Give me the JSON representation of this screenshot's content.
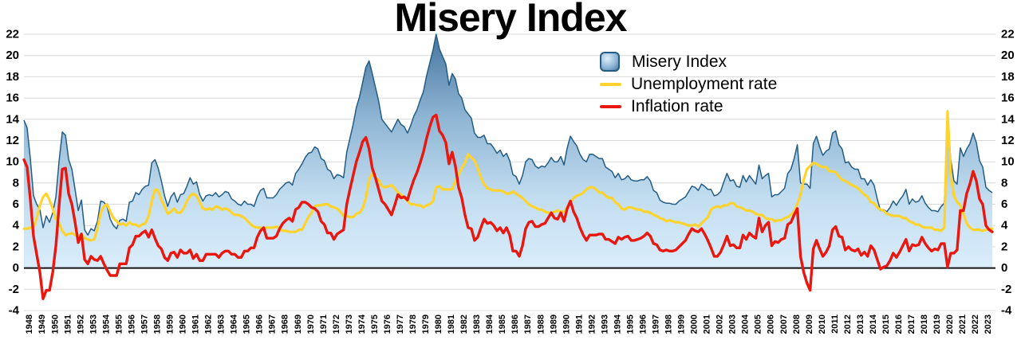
{
  "chart_data": {
    "type": "area",
    "title": "Misery Index",
    "x_range": [
      1948,
      2024
    ],
    "x_step": 0.25,
    "resolution": "quarterly",
    "ylim": [
      -4,
      22
    ],
    "y_ticks": [
      -4,
      -2,
      0,
      2,
      4,
      6,
      8,
      10,
      12,
      14,
      16,
      18,
      20,
      22
    ],
    "y_axis_sides": "both",
    "grid": true,
    "legend_position": "upper-right-inside",
    "x_tick_labels": [
      1948,
      1949,
      1950,
      1951,
      1952,
      1953,
      1954,
      1955,
      1956,
      1957,
      1958,
      1959,
      1960,
      1961,
      1962,
      1963,
      1964,
      1965,
      1966,
      1967,
      1968,
      1969,
      1970,
      1971,
      1972,
      1973,
      1974,
      1975,
      1976,
      1977,
      1978,
      1979,
      1980,
      1981,
      1982,
      1983,
      1984,
      1985,
      1986,
      1987,
      1988,
      1989,
      1990,
      1991,
      1992,
      1993,
      1994,
      1995,
      1996,
      1997,
      1998,
      1999,
      2000,
      2001,
      2002,
      2003,
      2004,
      2005,
      2006,
      2007,
      2008,
      2009,
      2010,
      2011,
      2012,
      2013,
      2014,
      2015,
      2016,
      2017,
      2018,
      2019,
      2020,
      2021,
      2022,
      2023
    ],
    "colors": {
      "background": "#ffffff",
      "grid": "#d8d8d8",
      "zero_line": "#161616",
      "text": "#000000",
      "area_outline": "#235c85",
      "area_gradient": [
        "#47749f",
        "#8db4d3",
        "#c2ddf0",
        "#daedfb"
      ],
      "legend_swatch_highlight": "#dff0fa",
      "unemployment": "#ffd32e",
      "inflation": "#e8170f"
    },
    "series": [
      {
        "name": "Misery Index",
        "type": "area",
        "formula": "unemployment_rate + inflation_rate"
      },
      {
        "name": "Unemployment rate",
        "type": "line",
        "color": "#ffd32e",
        "values": [
          3.7,
          3.7,
          3.8,
          3.8,
          4.7,
          5.9,
          6.7,
          7.0,
          6.4,
          5.6,
          4.6,
          4.2,
          3.5,
          3.1,
          3.2,
          3.3,
          3.1,
          3.0,
          3.2,
          2.8,
          2.7,
          2.6,
          2.7,
          3.7,
          5.2,
          5.8,
          6.0,
          5.3,
          4.7,
          4.4,
          4.1,
          4.2,
          4.0,
          4.3,
          4.1,
          4.1,
          3.9,
          4.1,
          4.2,
          4.9,
          6.3,
          7.4,
          7.3,
          6.4,
          5.8,
          5.1,
          5.3,
          5.6,
          5.2,
          5.2,
          5.6,
          6.3,
          6.8,
          7.0,
          6.8,
          6.2,
          5.6,
          5.5,
          5.6,
          5.5,
          5.8,
          5.7,
          5.5,
          5.6,
          5.5,
          5.2,
          5.0,
          5.0,
          4.9,
          4.7,
          4.4,
          4.1,
          3.9,
          3.8,
          3.8,
          3.7,
          3.8,
          3.8,
          3.8,
          3.9,
          3.7,
          3.5,
          3.5,
          3.4,
          3.4,
          3.4,
          3.6,
          3.6,
          4.2,
          4.8,
          5.2,
          5.8,
          5.9,
          5.9,
          6.0,
          6.0,
          5.8,
          5.7,
          5.6,
          5.3,
          4.9,
          4.9,
          4.8,
          4.8,
          5.1,
          5.2,
          5.6,
          6.6,
          8.3,
          8.9,
          8.5,
          8.3,
          7.7,
          7.6,
          7.7,
          7.8,
          7.5,
          7.1,
          6.9,
          6.6,
          6.3,
          6.0,
          6.0,
          5.9,
          5.9,
          5.7,
          5.9,
          6.0,
          6.3,
          7.6,
          7.7,
          7.4,
          7.4,
          7.4,
          7.4,
          8.2,
          8.8,
          9.4,
          9.9,
          10.7,
          10.4,
          10.1,
          9.4,
          8.5,
          7.9,
          7.5,
          7.4,
          7.3,
          7.3,
          7.3,
          7.2,
          7.0,
          7.0,
          7.2,
          7.0,
          6.8,
          6.6,
          6.3,
          6.0,
          5.8,
          5.7,
          5.5,
          5.5,
          5.3,
          5.2,
          5.2,
          5.3,
          5.4,
          5.3,
          5.3,
          5.7,
          6.1,
          6.6,
          6.8,
          6.9,
          7.1,
          7.4,
          7.6,
          7.6,
          7.4,
          7.1,
          7.1,
          6.8,
          6.6,
          6.6,
          6.2,
          6.0,
          5.6,
          5.5,
          5.7,
          5.7,
          5.6,
          5.5,
          5.5,
          5.3,
          5.3,
          5.2,
          5.0,
          4.9,
          4.7,
          4.6,
          4.4,
          4.5,
          4.4,
          4.3,
          4.3,
          4.2,
          4.1,
          4.0,
          4.0,
          4.1,
          3.9,
          4.2,
          4.5,
          4.8,
          5.5,
          5.7,
          5.8,
          5.7,
          5.9,
          5.9,
          6.1,
          6.1,
          5.8,
          5.7,
          5.6,
          5.4,
          5.4,
          5.3,
          5.1,
          5.0,
          5.0,
          4.7,
          4.6,
          4.6,
          4.4,
          4.5,
          4.5,
          4.7,
          4.8,
          5.0,
          5.3,
          6.0,
          6.9,
          8.3,
          9.3,
          9.6,
          9.9,
          9.8,
          9.6,
          9.5,
          9.5,
          9.1,
          9.1,
          9.0,
          8.6,
          8.3,
          8.2,
          8.0,
          7.8,
          7.7,
          7.5,
          7.2,
          6.9,
          6.7,
          6.2,
          6.1,
          5.7,
          5.5,
          5.4,
          5.1,
          5.0,
          4.9,
          4.9,
          4.9,
          4.7,
          4.7,
          4.4,
          4.3,
          4.1,
          4.1,
          3.9,
          3.8,
          3.8,
          3.8,
          3.6,
          3.6,
          3.5,
          3.8,
          14.7,
          8.8,
          6.8,
          6.2,
          5.9,
          5.1,
          4.2,
          3.8,
          3.6,
          3.6,
          3.6,
          3.5,
          3.6,
          3.7,
          3.7
        ]
      },
      {
        "name": "Inflation rate",
        "type": "line",
        "color": "#e8170f",
        "values": [
          10.2,
          9.5,
          6.5,
          3.0,
          1.3,
          -0.4,
          -2.9,
          -2.1,
          -2.1,
          -0.4,
          2.1,
          5.9,
          9.3,
          9.4,
          7.0,
          6.0,
          4.3,
          2.4,
          3.2,
          0.8,
          0.4,
          1.1,
          0.8,
          0.7,
          1.1,
          0.4,
          -0.2,
          -0.7,
          -0.7,
          -0.7,
          0.4,
          0.4,
          0.4,
          1.9,
          2.2,
          3.0,
          3.0,
          3.3,
          3.5,
          2.9,
          3.6,
          2.8,
          2.1,
          1.8,
          1.0,
          0.7,
          1.4,
          1.5,
          1.0,
          1.7,
          1.4,
          1.4,
          1.7,
          0.9,
          1.3,
          0.7,
          0.7,
          1.3,
          1.3,
          1.3,
          1.3,
          1.0,
          1.4,
          1.6,
          1.6,
          1.3,
          1.3,
          1.0,
          1.0,
          1.6,
          1.6,
          1.9,
          1.9,
          2.9,
          3.5,
          3.8,
          2.8,
          2.8,
          2.8,
          3.0,
          3.7,
          4.2,
          4.5,
          4.7,
          4.4,
          5.5,
          5.7,
          6.2,
          6.2,
          6.0,
          5.7,
          5.6,
          5.3,
          4.4,
          4.1,
          3.3,
          3.3,
          2.7,
          3.2,
          3.4,
          3.6,
          6.0,
          7.4,
          8.7,
          10.0,
          10.9,
          11.9,
          12.3,
          11.2,
          9.4,
          8.5,
          7.4,
          6.3,
          6.0,
          5.5,
          5.0,
          5.9,
          6.9,
          6.6,
          6.7,
          6.4,
          7.4,
          8.3,
          9.0,
          9.9,
          10.9,
          12.2,
          13.3,
          14.2,
          14.4,
          12.9,
          12.5,
          11.8,
          9.8,
          10.9,
          9.6,
          7.6,
          6.6,
          5.0,
          3.8,
          3.7,
          2.6,
          2.9,
          3.8,
          4.6,
          4.2,
          4.3,
          4.0,
          3.5,
          3.8,
          3.3,
          3.8,
          3.1,
          1.6,
          1.6,
          1.1,
          2.1,
          3.7,
          4.3,
          4.4,
          3.9,
          3.9,
          4.1,
          4.2,
          4.7,
          5.2,
          4.7,
          4.6,
          5.2,
          4.4,
          5.6,
          6.3,
          5.3,
          4.7,
          3.8,
          3.1,
          2.6,
          3.1,
          3.1,
          3.1,
          3.2,
          3.2,
          2.7,
          2.7,
          2.5,
          2.3,
          2.9,
          2.7,
          2.9,
          3.0,
          2.6,
          2.6,
          2.7,
          2.8,
          3.0,
          3.3,
          3.0,
          2.3,
          2.2,
          1.7,
          1.6,
          1.7,
          1.6,
          1.6,
          1.7,
          2.0,
          2.3,
          2.6,
          3.2,
          3.7,
          3.5,
          3.4,
          3.7,
          3.2,
          2.6,
          1.9,
          1.1,
          1.1,
          1.5,
          2.2,
          3.0,
          2.1,
          2.2,
          1.9,
          1.9,
          3.1,
          2.7,
          3.3,
          3.0,
          2.8,
          4.7,
          3.4,
          4.0,
          4.3,
          2.1,
          2.5,
          2.4,
          2.7,
          2.8,
          4.1,
          4.3,
          5.0,
          5.6,
          1.1,
          -0.4,
          -1.4,
          -2.1,
          1.8,
          2.6,
          1.8,
          1.1,
          1.5,
          2.1,
          3.6,
          3.9,
          3.0,
          2.9,
          1.7,
          2.0,
          1.7,
          1.6,
          1.8,
          1.2,
          1.5,
          1.1,
          2.1,
          1.7,
          0.8,
          -0.1,
          0.1,
          0.2,
          0.7,
          1.4,
          1.0,
          1.5,
          2.1,
          2.7,
          1.6,
          2.2,
          2.1,
          2.2,
          2.9,
          2.3,
          1.9,
          1.6,
          1.8,
          1.7,
          2.3,
          2.3,
          0.1,
          1.4,
          1.4,
          1.7,
          5.4,
          5.4,
          7.0,
          7.9,
          9.1,
          8.2,
          6.5,
          6.0,
          4.0,
          3.6,
          3.4
        ]
      }
    ]
  }
}
